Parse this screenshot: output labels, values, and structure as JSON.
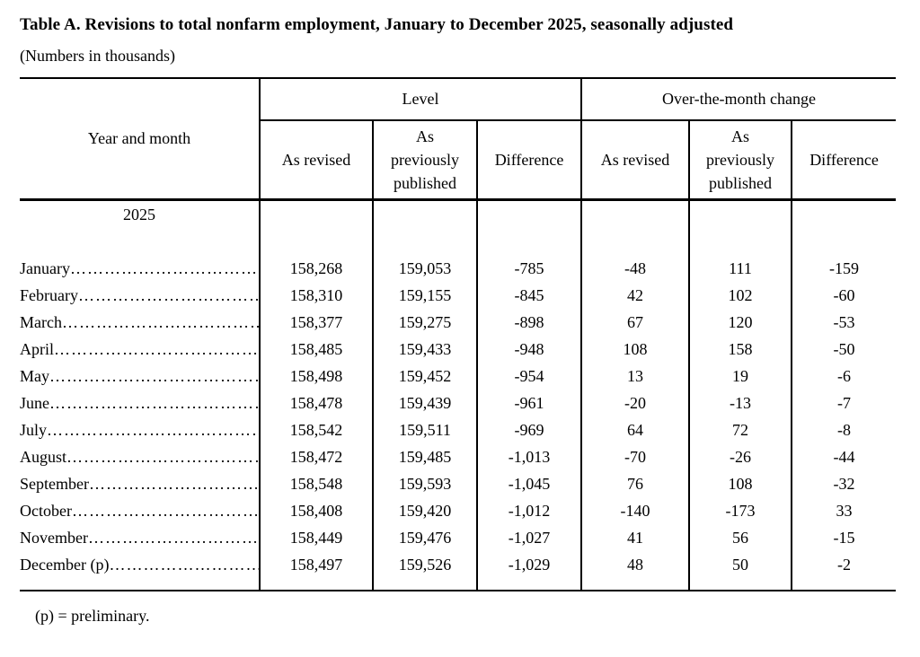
{
  "page": {
    "title": "Table A. Revisions to total nonfarm employment, January to December 2025, seasonally adjusted",
    "subtitle": "(Numbers in thousands)",
    "footnote": "(p) = preliminary."
  },
  "table": {
    "row_header": "Year and month",
    "year_label": "2025",
    "leader": "……………………………………………………………………………………",
    "groups": [
      {
        "label": "Level",
        "columns": [
          "As revised",
          "As\npreviously\npublished",
          "Difference"
        ]
      },
      {
        "label": "Over-the-month change",
        "columns": [
          "As revised",
          "As\npreviously\npublished",
          "Difference"
        ]
      }
    ],
    "rows": [
      {
        "month": "January",
        "cells": [
          "158,268",
          "159,053",
          "-785",
          "-48",
          "111",
          "-159"
        ]
      },
      {
        "month": "February",
        "cells": [
          "158,310",
          "159,155",
          "-845",
          "42",
          "102",
          "-60"
        ]
      },
      {
        "month": "March",
        "cells": [
          "158,377",
          "159,275",
          "-898",
          "67",
          "120",
          "-53"
        ]
      },
      {
        "month": "April",
        "cells": [
          "158,485",
          "159,433",
          "-948",
          "108",
          "158",
          "-50"
        ]
      },
      {
        "month": "May",
        "cells": [
          "158,498",
          "159,452",
          "-954",
          "13",
          "19",
          "-6"
        ]
      },
      {
        "month": "June",
        "cells": [
          "158,478",
          "159,439",
          "-961",
          "-20",
          "-13",
          "-7"
        ]
      },
      {
        "month": "July",
        "cells": [
          "158,542",
          "159,511",
          "-969",
          "64",
          "72",
          "-8"
        ]
      },
      {
        "month": "August",
        "cells": [
          "158,472",
          "159,485",
          "-1,013",
          "-70",
          "-26",
          "-44"
        ]
      },
      {
        "month": "September",
        "cells": [
          "158,548",
          "159,593",
          "-1,045",
          "76",
          "108",
          "-32"
        ]
      },
      {
        "month": "October",
        "cells": [
          "158,408",
          "159,420",
          "-1,012",
          "-140",
          "-173",
          "33"
        ]
      },
      {
        "month": "November",
        "cells": [
          "158,449",
          "159,476",
          "-1,027",
          "41",
          "56",
          "-15"
        ]
      },
      {
        "month": "December (p)",
        "cells": [
          "158,497",
          "159,526",
          "-1,029",
          "48",
          "50",
          "-2"
        ]
      }
    ]
  },
  "colors": {
    "text": "#000000",
    "background": "#ffffff",
    "rule": "#000000"
  }
}
